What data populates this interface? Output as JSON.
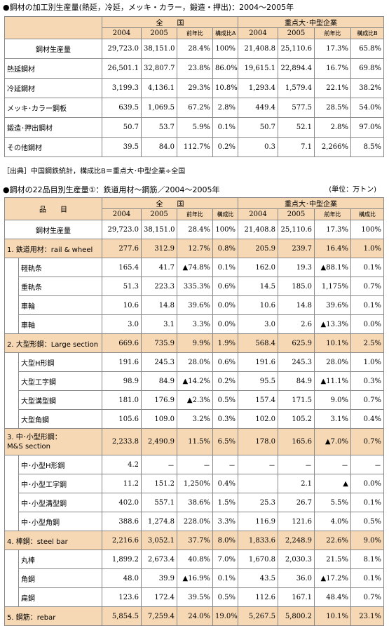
{
  "table1": {
    "title": "●鋼材の加工別生産量(熱延，冷延，メッキ・カラー，鍛造・押出)：2004～2005年",
    "group_national": "全　　国",
    "group_key": "重点大･中型企業",
    "cols_national": [
      "2004",
      "2005",
      "前年比",
      "構成比A"
    ],
    "cols_key": [
      "2004",
      "2005",
      "前年比",
      "構成比B"
    ],
    "rows": [
      {
        "label": "鋼材生産量",
        "vals": [
          "29,723.0",
          "38,151.0",
          "28.4%",
          "100%",
          "21,408.8",
          "25,110.6",
          "17.3%",
          "65.8%"
        ]
      },
      {
        "label": "熱延鋼材",
        "vals": [
          "26,501.1",
          "32,807.7",
          "23.8%",
          "86.0%",
          "19,615.1",
          "22,894.4",
          "16.7%",
          "69.8%"
        ]
      },
      {
        "label": "冷延鋼材",
        "vals": [
          "3,199.3",
          "4,136.1",
          "29.3%",
          "10.8%",
          "1,293.4",
          "1,579.4",
          "22.1%",
          "38.2%"
        ]
      },
      {
        "label": "メッキ･カラー鋼板",
        "vals": [
          "639.5",
          "1,069.5",
          "67.2%",
          "2.8%",
          "449.4",
          "577.5",
          "28.5%",
          "54.0%"
        ]
      },
      {
        "label": "鍛造･押出鋼材",
        "vals": [
          "50.7",
          "53.7",
          "5.9%",
          "0.1%",
          "50.7",
          "52.1",
          "2.8%",
          "97.0%"
        ]
      },
      {
        "label": "その他鋼材",
        "vals": [
          "39.5",
          "84.0",
          "112.7%",
          "0.2%",
          "0.3",
          "7.1",
          "2,266%",
          "8.5%"
        ]
      }
    ],
    "source": "［出典］中国鋼鉄統計，構成比B＝重点大･中型企業÷全国"
  },
  "table2": {
    "title": "●鋼材の22品目別生産量①：鉄道用材～鋼筋／2004～2005年",
    "unit": "(単位：万トン)",
    "item_header": "品　　目",
    "group_national": "全　　国",
    "group_key": "重点大･中型企業",
    "cols_national": [
      "2004",
      "2005",
      "前年比",
      "構成比"
    ],
    "cols_key": [
      "2004",
      "2005",
      "前年比",
      "構成比"
    ],
    "total": {
      "label": "鋼材生産量",
      "vals": [
        "29,723.0",
        "38,151.0",
        "28.4%",
        "100%",
        "21,408.8",
        "25,110.6",
        "17.3%",
        "100%"
      ]
    },
    "rows": [
      {
        "type": "cat",
        "label": "1. 鉄道用材：rail & wheel",
        "vals": [
          "277.6",
          "312.9",
          "12.7%",
          "0.8%",
          "205.9",
          "239.7",
          "16.4%",
          "1.0%"
        ]
      },
      {
        "type": "sub",
        "label": "軽軌条",
        "vals": [
          "165.4",
          "41.7",
          "▲74.8%",
          "0.1%",
          "162.0",
          "19.3",
          "▲88.1%",
          "0.1%"
        ]
      },
      {
        "type": "sub",
        "label": "重軌条",
        "vals": [
          "51.3",
          "223.3",
          "335.3%",
          "0.6%",
          "14.5",
          "185.0",
          "1,175%",
          "0.7%"
        ]
      },
      {
        "type": "sub",
        "label": "車輪",
        "vals": [
          "10.6",
          "14.8",
          "39.6%",
          "0.0%",
          "10.6",
          "14.8",
          "39.6%",
          "0.1%"
        ]
      },
      {
        "type": "sub",
        "label": "車軸",
        "vals": [
          "3.0",
          "3.1",
          "3.3%",
          "0.0%",
          "3.0",
          "2.6",
          "▲13.3%",
          "0.0%"
        ]
      },
      {
        "type": "cat",
        "label": "2. 大型形鋼：Large section",
        "vals": [
          "669.6",
          "735.9",
          "9.9%",
          "1.9%",
          "568.4",
          "625.9",
          "10.1%",
          "2.5%"
        ]
      },
      {
        "type": "sub",
        "label": "大型H形鋼",
        "vals": [
          "191.6",
          "245.3",
          "28.0%",
          "0.6%",
          "191.6",
          "245.3",
          "28.0%",
          "1.0%"
        ]
      },
      {
        "type": "sub",
        "label": "大型工字鋼",
        "vals": [
          "98.9",
          "84.9",
          "▲14.2%",
          "0.2%",
          "95.5",
          "84.9",
          "▲11.1%",
          "0.3%"
        ]
      },
      {
        "type": "sub",
        "label": "大型溝型鋼",
        "vals": [
          "181.0",
          "176.9",
          "▲2.3%",
          "0.5%",
          "157.4",
          "171.5",
          "9.0%",
          "0.7%"
        ]
      },
      {
        "type": "sub",
        "label": "大型角鋼",
        "vals": [
          "105.6",
          "109.0",
          "3.2%",
          "0.3%",
          "102.0",
          "105.2",
          "3.1%",
          "0.4%"
        ]
      },
      {
        "type": "cat",
        "label": "3. 中･小型形鋼：",
        "label2": "M&S section",
        "vals": [
          "2,233.8",
          "2,490.9",
          "11.5%",
          "6.5%",
          "178.0",
          "165.6",
          "▲7.0%",
          "0.7%"
        ]
      },
      {
        "type": "sub",
        "label": "中･小型H形鋼",
        "vals": [
          "4.2",
          "－",
          "－",
          "－",
          "－",
          "－",
          "－",
          "－"
        ]
      },
      {
        "type": "sub",
        "label": "中･小型工字鋼",
        "vals": [
          "11.2",
          "151.2",
          "1,250%",
          "0.4%",
          "",
          "2.1",
          "▲",
          "0.0%"
        ]
      },
      {
        "type": "sub",
        "label": "中･小型溝型鋼",
        "vals": [
          "402.0",
          "557.1",
          "38.6%",
          "1.5%",
          "25.3",
          "26.7",
          "5.5%",
          "0.1%"
        ]
      },
      {
        "type": "sub",
        "label": "中･小型角鋼",
        "vals": [
          "388.6",
          "1,274.8",
          "228.0%",
          "3.3%",
          "116.9",
          "121.6",
          "4.0%",
          "0.5%"
        ]
      },
      {
        "type": "cat",
        "label": "4. 棒鋼：steel bar",
        "vals": [
          "2,216.6",
          "3,052.1",
          "37.7%",
          "8.0%",
          "1,833.6",
          "2,248.9",
          "22.6%",
          "9.0%"
        ]
      },
      {
        "type": "sub",
        "label": "丸棒",
        "vals": [
          "1,899.2",
          "2,673.4",
          "40.8%",
          "7.0%",
          "1,670.8",
          "2,030.3",
          "21.5%",
          "8.1%"
        ]
      },
      {
        "type": "sub",
        "label": "角鋼",
        "vals": [
          "48.0",
          "39.9",
          "▲16.9%",
          "0.1%",
          "43.5",
          "36.0",
          "▲17.2%",
          "0.1%"
        ]
      },
      {
        "type": "sub",
        "label": "扁鋼",
        "vals": [
          "123.6",
          "172.4",
          "39.5%",
          "0.5%",
          "112.6",
          "167.1",
          "48.4%",
          "0.7%"
        ]
      },
      {
        "type": "cat",
        "label": "5. 鋼筋：rebar",
        "vals": [
          "5,854.5",
          "7,259.4",
          "24.0%",
          "19.0%",
          "5,267.5",
          "5,800.2",
          "10.1%",
          "23.1%"
        ]
      }
    ]
  }
}
